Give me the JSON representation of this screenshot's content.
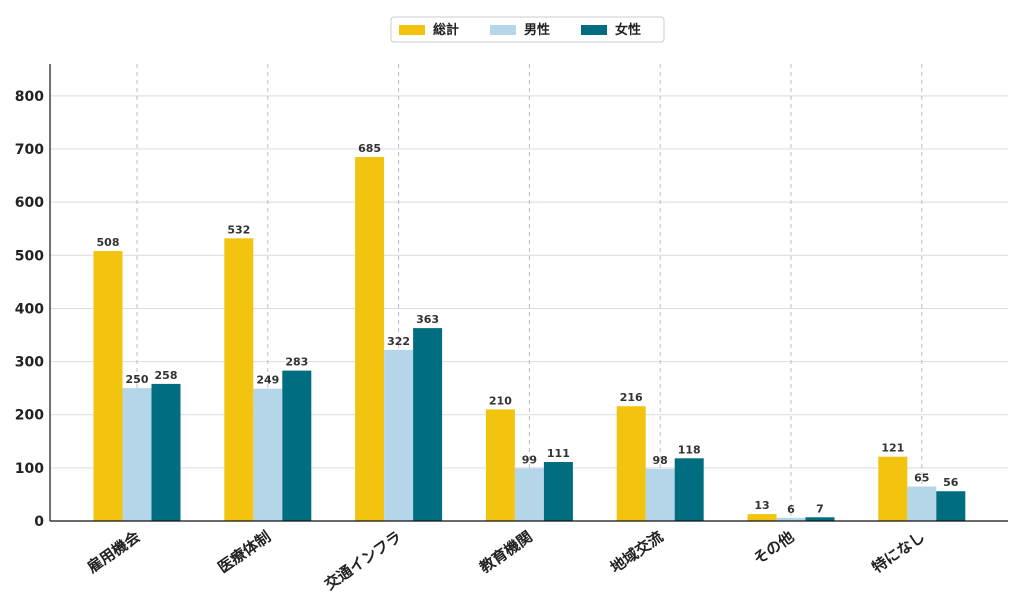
{
  "chart_data": {
    "type": "bar",
    "categories": [
      "雇用機会",
      "医療体制",
      "交通インフラ",
      "教育機関",
      "地域交流",
      "その他",
      "特になし"
    ],
    "series": [
      {
        "name": "総計",
        "color": "#F2C40F",
        "values": [
          508,
          532,
          685,
          210,
          216,
          13,
          121
        ]
      },
      {
        "name": "男性",
        "color": "#B4D6E8",
        "values": [
          250,
          249,
          322,
          99,
          98,
          6,
          65
        ]
      },
      {
        "name": "女性",
        "color": "#006E80",
        "values": [
          258,
          283,
          363,
          111,
          118,
          7,
          56
        ]
      }
    ],
    "yticks": [
      0,
      100,
      200,
      300,
      400,
      500,
      600,
      700,
      800
    ],
    "ylim": [
      0,
      860
    ],
    "title": "",
    "xlabel": "",
    "ylabel": "",
    "grid": true,
    "legend_position": "top-center"
  }
}
